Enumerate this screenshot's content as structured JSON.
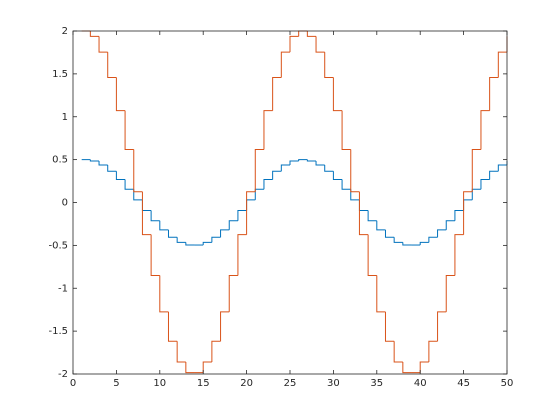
{
  "chart_data": {
    "type": "stairs",
    "x": [
      1,
      2,
      3,
      4,
      5,
      6,
      7,
      8,
      9,
      10,
      11,
      12,
      13,
      14,
      15,
      16,
      17,
      18,
      19,
      20,
      21,
      22,
      23,
      24,
      25,
      26,
      27,
      28,
      29,
      30,
      31,
      32,
      33,
      34,
      35,
      36,
      37,
      38,
      39,
      40,
      41,
      42,
      43,
      44,
      45,
      46,
      47,
      48,
      49,
      50
    ],
    "series": [
      {
        "color": "#0072bd",
        "values": [
          0.5,
          0.484,
          0.438,
          0.365,
          0.268,
          0.155,
          0.031,
          -0.094,
          -0.213,
          -0.319,
          -0.405,
          -0.465,
          -0.496,
          -0.496,
          -0.465,
          -0.405,
          -0.319,
          -0.213,
          -0.094,
          0.031,
          0.155,
          0.268,
          0.365,
          0.438,
          0.484,
          0.5,
          0.484,
          0.438,
          0.365,
          0.268,
          0.155,
          0.031,
          -0.094,
          -0.213,
          -0.319,
          -0.405,
          -0.465,
          -0.496,
          -0.496,
          -0.465,
          -0.405,
          -0.319,
          -0.213,
          -0.094,
          0.031,
          0.155,
          0.268,
          0.365,
          0.438,
          0.484
        ]
      },
      {
        "color": "#d95319",
        "values": [
          2,
          1.937,
          1.753,
          1.458,
          1.072,
          0.618,
          0.126,
          -0.375,
          -0.852,
          -1.275,
          -1.618,
          -1.86,
          -1.984,
          -1.984,
          -1.86,
          -1.618,
          -1.275,
          -0.852,
          -0.375,
          0.126,
          0.618,
          1.072,
          1.458,
          1.753,
          1.937,
          2,
          1.937,
          1.753,
          1.458,
          1.072,
          0.618,
          0.126,
          -0.375,
          -0.852,
          -1.275,
          -1.618,
          -1.86,
          -1.984,
          -1.984,
          -1.86,
          -1.618,
          -1.275,
          -0.852,
          -0.375,
          0.126,
          0.618,
          1.072,
          1.458,
          1.753,
          1.937
        ]
      }
    ],
    "xlim": [
      0,
      50
    ],
    "xticks": [
      0,
      5,
      10,
      15,
      20,
      25,
      30,
      35,
      40,
      45,
      50
    ],
    "ylim": [
      -2,
      2
    ],
    "yticks": [
      -2,
      -1.5,
      -1,
      -0.5,
      0,
      0.5,
      1,
      1.5,
      2
    ]
  }
}
